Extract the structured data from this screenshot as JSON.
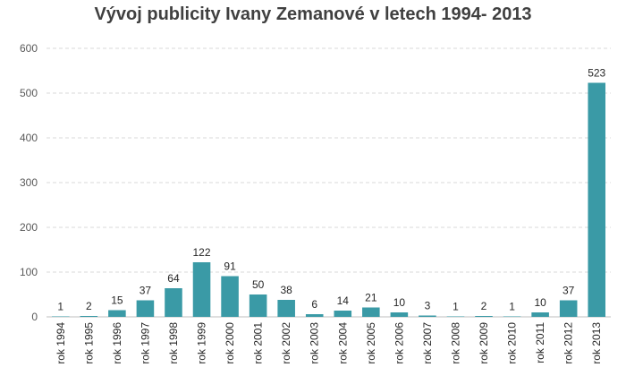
{
  "chart_data": {
    "type": "bar",
    "title": "Vývoj publicity Ivany Zemanové v letech 1994- 2013",
    "xlabel": "",
    "ylabel": "",
    "categories": [
      "rok 1994",
      "rok 1995",
      "rok 1996",
      "rok 1997",
      "rok 1998",
      "rok 1999",
      "rok 2000",
      "rok 2001",
      "rok 2002",
      "rok 2003",
      "rok 2004",
      "rok 2005",
      "rok 2006",
      "rok 2007",
      "rok 2008",
      "rok 2009",
      "rok 2010",
      "rok 2011",
      "rok 2012",
      "rok 2013"
    ],
    "values": [
      1,
      2,
      15,
      37,
      64,
      122,
      91,
      50,
      38,
      6,
      14,
      21,
      10,
      3,
      1,
      2,
      1,
      10,
      37,
      523
    ],
    "ylim": [
      0,
      600
    ],
    "yticks": [
      0,
      100,
      200,
      300,
      400,
      500,
      600
    ],
    "grid": true,
    "grid_style": "dashed",
    "legend": false,
    "bar_color": "#3a9aa6",
    "data_labels": true
  }
}
